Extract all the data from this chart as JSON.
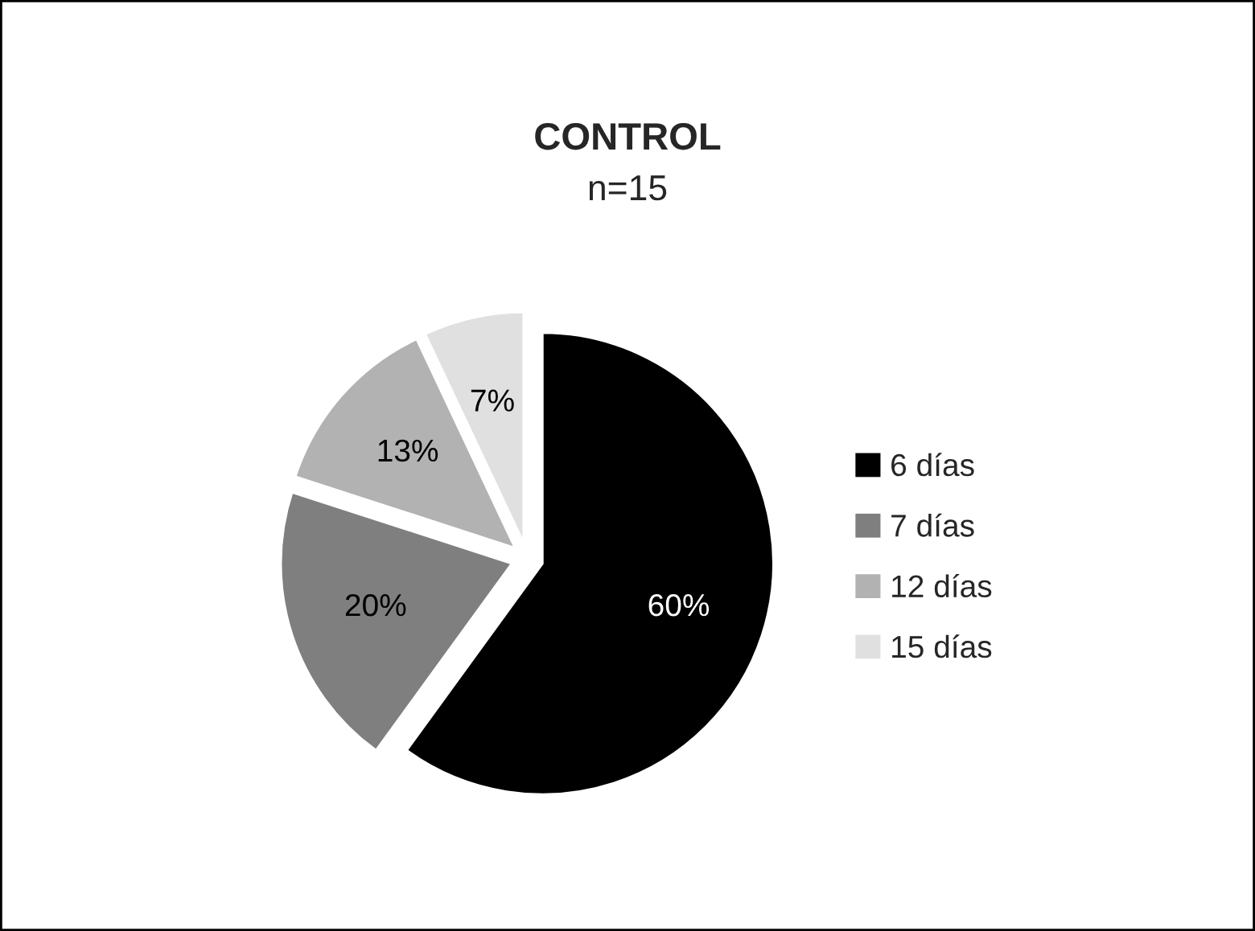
{
  "chart_data": {
    "type": "pie",
    "title": "CONTROL",
    "subtitle": "n=15",
    "categories": [
      "6 días",
      "7 días",
      "12 días",
      "15 días"
    ],
    "values": [
      60,
      20,
      13,
      7
    ],
    "colors": [
      "#000000",
      "#7f7f7f",
      "#b2b2b2",
      "#e0e0e0"
    ],
    "value_labels": [
      "60%",
      "20%",
      "13%",
      "7%"
    ],
    "legend": "right"
  }
}
